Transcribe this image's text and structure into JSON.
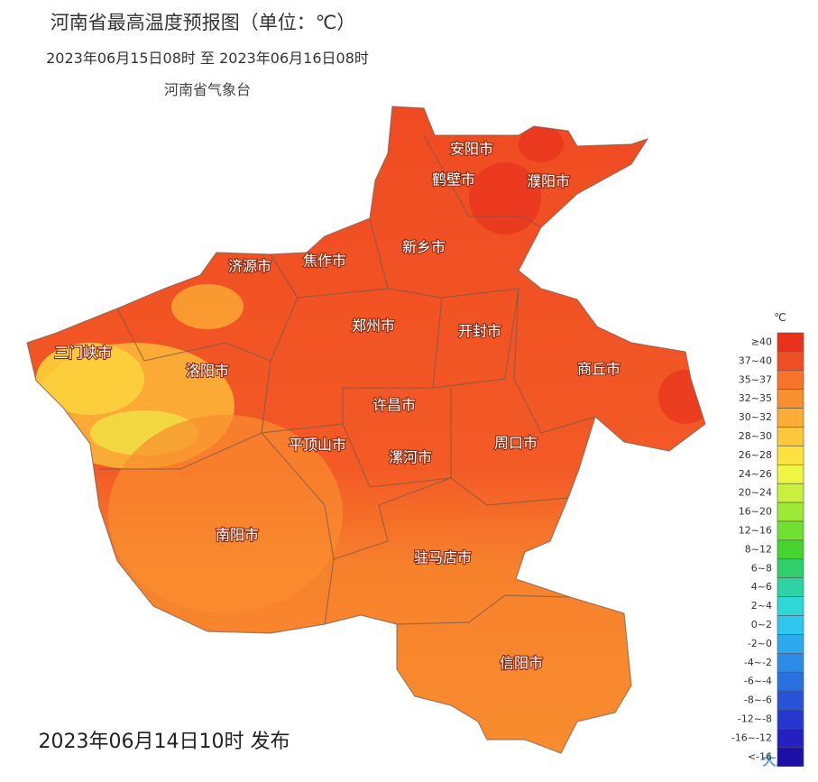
{
  "header": {
    "title": "河南省最高温度预报图（单位：℃）",
    "period": "2023年06月15日08时 至 2023年06月16日08时",
    "issuer": "河南省气象台"
  },
  "cities": [
    "安阳市",
    "鹤壁市",
    "濮阳市",
    "新乡市",
    "焦作市",
    "济源市",
    "郑州市",
    "开封市",
    "商丘市",
    "三门峡市",
    "洛阳市",
    "许昌市",
    "平顶山市",
    "漯河市",
    "周口市",
    "南阳市",
    "驻马店市",
    "信阳市"
  ],
  "legend": {
    "unit": "℃",
    "items": [
      {
        "label": "≥40",
        "color": "#e8321e"
      },
      {
        "label": "37~40",
        "color": "#f04f23"
      },
      {
        "label": "35~37",
        "color": "#f5732a"
      },
      {
        "label": "32~35",
        "color": "#f99030"
      },
      {
        "label": "30~32",
        "color": "#fbad35"
      },
      {
        "label": "28~30",
        "color": "#fcc83a"
      },
      {
        "label": "26~28",
        "color": "#fde23f"
      },
      {
        "label": "24~26",
        "color": "#eef542"
      },
      {
        "label": "20~24",
        "color": "#c9f03c"
      },
      {
        "label": "16~20",
        "color": "#9ee936"
      },
      {
        "label": "12~16",
        "color": "#72e030"
      },
      {
        "label": "8~12",
        "color": "#48d32f"
      },
      {
        "label": "6~8",
        "color": "#2fcf6a"
      },
      {
        "label": "4~6",
        "color": "#2ed3a3"
      },
      {
        "label": "2~4",
        "color": "#2fd8d6"
      },
      {
        "label": "0~2",
        "color": "#2fc6ef"
      },
      {
        "label": "-2~0",
        "color": "#2ea9ec"
      },
      {
        "label": "-4~-2",
        "color": "#2c8de6"
      },
      {
        "label": "-6~-4",
        "color": "#2a70df"
      },
      {
        "label": "-8~-6",
        "color": "#2853d8"
      },
      {
        "label": "-12~-8",
        "color": "#2637cf"
      },
      {
        "label": "-16~-12",
        "color": "#2420c4"
      },
      {
        "label": "<-16",
        "color": "#1c10a8"
      }
    ]
  },
  "footer": "2023年06月14日10时 发布",
  "watermark": "大康网"
}
